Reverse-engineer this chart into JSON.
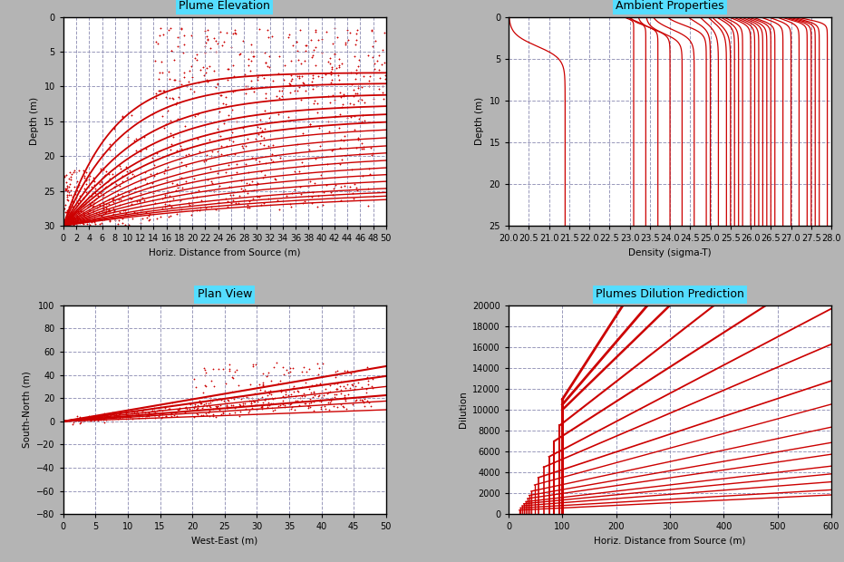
{
  "fig_width": 9.31,
  "fig_height": 6.2,
  "bg_color": "#b4b4b4",
  "plot_bg_color": "#ffffff",
  "line_color": "#cc0000",
  "scatter_color": "#cc0000",
  "title_bg_color": "#55ddff",
  "grid_color": "#9999bb",
  "grid_style": "--",
  "plot1": {
    "title": "Plume Elevation",
    "xlabel": "Horiz. Distance from Source (m)",
    "ylabel": "Depth (m)",
    "xlim": [
      0,
      50
    ],
    "ylim": [
      30,
      0
    ],
    "xticks": [
      0,
      2,
      4,
      6,
      8,
      10,
      12,
      14,
      16,
      18,
      20,
      22,
      24,
      26,
      28,
      30,
      32,
      34,
      36,
      38,
      40,
      42,
      44,
      46,
      48,
      50
    ],
    "yticks": [
      0,
      5,
      10,
      15,
      20,
      25,
      30
    ]
  },
  "plot2": {
    "title": "Ambient Properties",
    "xlabel": "Density (sigma-T)",
    "ylabel": "Depth (m)",
    "xlim": [
      20,
      28
    ],
    "ylim": [
      25,
      0
    ],
    "xticks": [
      20,
      20.5,
      21,
      21.5,
      22,
      22.5,
      23,
      23.5,
      24,
      24.5,
      25,
      25.5,
      26,
      26.5,
      27,
      27.5,
      28
    ],
    "yticks": [
      0,
      5,
      10,
      15,
      20,
      25
    ]
  },
  "plot3": {
    "title": "Plan View",
    "xlabel": "West-East (m)",
    "ylabel": "South-North (m)",
    "xlim": [
      0,
      50
    ],
    "ylim": [
      -80,
      100
    ],
    "xticks": [
      0,
      5,
      10,
      15,
      20,
      25,
      30,
      35,
      40,
      45,
      50
    ],
    "yticks": [
      -80,
      -60,
      -40,
      -20,
      0,
      20,
      40,
      60,
      80,
      100
    ]
  },
  "plot4": {
    "title": "Plumes Dilution Prediction",
    "xlabel": "Horiz. Distance from Source (m)",
    "ylabel": "Dilution",
    "xlim": [
      0,
      600
    ],
    "ylim": [
      0,
      20000
    ],
    "xticks": [
      0,
      100,
      200,
      300,
      400,
      500,
      600
    ],
    "yticks": [
      0,
      2000,
      4000,
      6000,
      8000,
      10000,
      12000,
      14000,
      16000,
      18000,
      20000
    ]
  }
}
